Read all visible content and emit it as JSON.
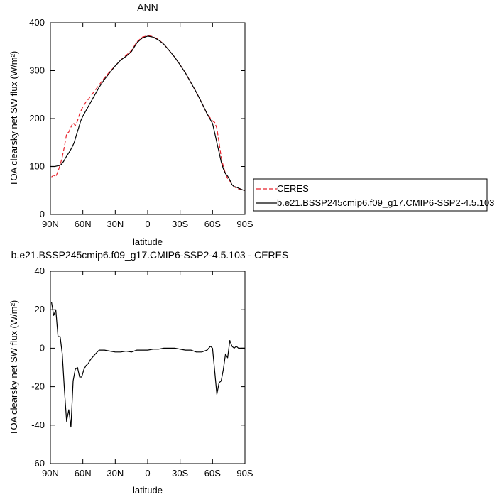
{
  "chart_data": [
    {
      "type": "line",
      "title": "ANN",
      "xlabel": "latitude",
      "ylabel": "TOA clearsky net SW flux (W/m²)",
      "xlim": [
        90,
        -90
      ],
      "ylim": [
        0,
        400
      ],
      "x_ticks": [
        90,
        60,
        30,
        0,
        -30,
        -60,
        -90
      ],
      "x_tick_labels": [
        "90N",
        "60N",
        "30N",
        "0",
        "30S",
        "60S",
        "90S"
      ],
      "y_ticks": [
        0,
        100,
        200,
        300,
        400
      ],
      "y_tick_labels": [
        "0",
        "100",
        "200",
        "300",
        "400"
      ],
      "legend": {
        "placement": "right",
        "entries": [
          "CERES",
          "b.e21.BSSP245cmip6.f09_g17.CMIP6-SSP2-4.5.103"
        ]
      },
      "series": [
        {
          "name": "CERES",
          "color": "#e8202a",
          "dash": "dashed",
          "x": [
            89,
            87,
            85,
            83,
            81,
            79,
            77,
            75,
            73,
            71,
            69,
            67,
            65,
            63,
            61,
            59,
            57,
            55,
            50,
            45,
            40,
            35,
            30,
            25,
            20,
            15,
            10,
            5,
            0,
            -5,
            -10,
            -15,
            -20,
            -25,
            -30,
            -35,
            -40,
            -45,
            -50,
            -55,
            -60,
            -62,
            -64,
            -66,
            -68,
            -70,
            -72,
            -74,
            -76,
            -78,
            -80,
            -82,
            -84,
            -86,
            -88,
            -90
          ],
          "y": [
            78,
            82,
            79,
            90,
            103,
            120,
            142,
            168,
            172,
            182,
            192,
            185,
            195,
            210,
            220,
            228,
            235,
            240,
            255,
            270,
            285,
            298,
            310,
            322,
            332,
            342,
            360,
            370,
            373,
            371,
            365,
            355,
            342,
            328,
            312,
            295,
            275,
            255,
            233,
            210,
            195,
            192,
            180,
            150,
            120,
            100,
            85,
            75,
            70,
            62,
            58,
            55,
            53,
            52,
            51,
            50
          ]
        },
        {
          "name": "b.e21.BSSP245cmip6.f09_g17.CMIP6-SSP2-4.5.103",
          "color": "#000000",
          "dash": "solid",
          "x": [
            90,
            88,
            86,
            84,
            82,
            80,
            78,
            76,
            74,
            72,
            70,
            68,
            66,
            64,
            62,
            60,
            55,
            50,
            45,
            40,
            35,
            30,
            25,
            20,
            15,
            10,
            5,
            0,
            -5,
            -10,
            -15,
            -20,
            -25,
            -30,
            -35,
            -40,
            -45,
            -50,
            -55,
            -60,
            -62,
            -64,
            -66,
            -68,
            -70,
            -72,
            -74,
            -76,
            -78,
            -80,
            -82,
            -84,
            -86,
            -88,
            -90
          ],
          "y": [
            100,
            100,
            100,
            101,
            102,
            104,
            110,
            118,
            125,
            132,
            140,
            150,
            165,
            180,
            195,
            205,
            225,
            245,
            265,
            282,
            296,
            310,
            322,
            330,
            340,
            358,
            368,
            372,
            370,
            364,
            355,
            342,
            328,
            312,
            295,
            275,
            255,
            233,
            210,
            190,
            170,
            150,
            130,
            110,
            95,
            85,
            80,
            72,
            62,
            58,
            57,
            55,
            53,
            51,
            50
          ]
        }
      ]
    },
    {
      "type": "line",
      "title": "b.e21.BSSP245cmip6.f09_g17.CMIP6-SSP2-4.5.103 - CERES",
      "xlabel": "latitude",
      "ylabel": "TOA clearsky net SW flux (W/m²)",
      "xlim": [
        90,
        -90
      ],
      "ylim": [
        -60,
        40
      ],
      "x_ticks": [
        90,
        60,
        30,
        0,
        -30,
        -60,
        -90
      ],
      "x_tick_labels": [
        "90N",
        "60N",
        "30N",
        "0",
        "30S",
        "60S",
        "90S"
      ],
      "y_ticks": [
        -60,
        -40,
        -20,
        0,
        20,
        40
      ],
      "y_tick_labels": [
        "-60",
        "-40",
        "-20",
        "0",
        "20",
        "40"
      ],
      "series": [
        {
          "color": "#000000",
          "dash": "solid",
          "x": [
            89,
            87,
            85,
            83,
            81,
            79,
            77,
            75,
            73,
            71,
            69,
            67,
            65,
            63,
            61,
            59,
            57,
            55,
            53,
            50,
            45,
            40,
            35,
            30,
            25,
            20,
            15,
            10,
            5,
            0,
            -5,
            -10,
            -15,
            -20,
            -25,
            -30,
            -35,
            -40,
            -45,
            -50,
            -55,
            -58,
            -60,
            -62,
            -64,
            -66,
            -68,
            -70,
            -72,
            -74,
            -76,
            -78,
            -80,
            -82,
            -84,
            -86,
            -88,
            -90
          ],
          "y": [
            24,
            17,
            20,
            6,
            6,
            -3,
            -22,
            -38,
            -32,
            -41,
            -17,
            -11,
            -10,
            -15,
            -15,
            -11,
            -9,
            -8,
            -6,
            -4,
            -1,
            -1,
            -1.5,
            -2,
            -2,
            -1.5,
            -2,
            -1,
            -1,
            -1,
            -0.5,
            -0.5,
            0,
            0,
            0,
            -0.5,
            -1,
            -1,
            -2,
            -2,
            -1,
            1,
            0,
            -12,
            -24,
            -18,
            -17,
            -11,
            -3,
            -5,
            4,
            1,
            0,
            1,
            0,
            0,
            0,
            0
          ]
        }
      ]
    }
  ]
}
